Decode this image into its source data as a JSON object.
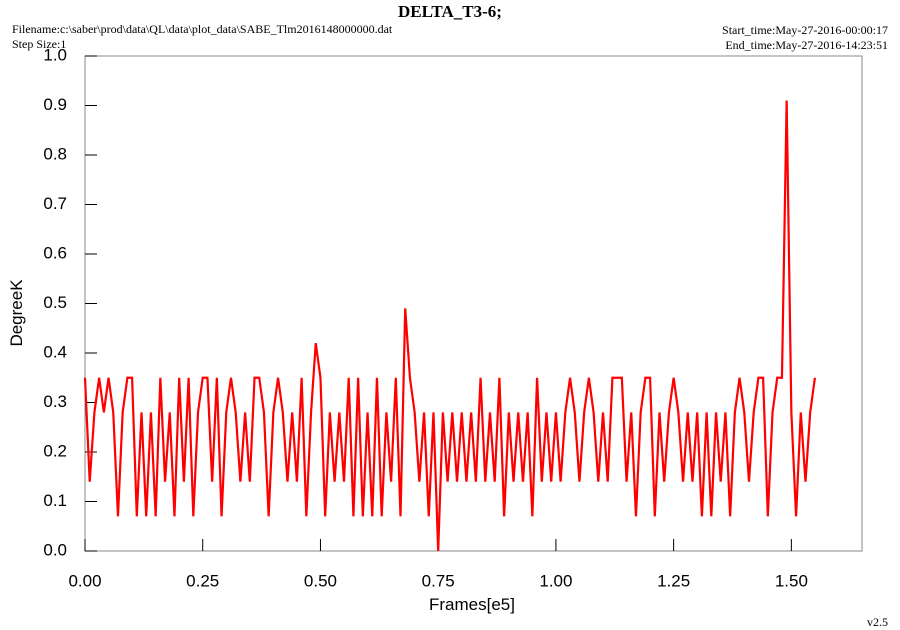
{
  "chart_data": {
    "type": "line",
    "title": "DELTA_T3-6;",
    "filename": "Filename:c:\\saber\\prod\\data\\QL\\data\\plot_data\\SABE_Tlm2016148000000.dat",
    "step_size": "Step Size:1",
    "start_time": "Start_time:May-27-2016-00:00:17",
    "end_time": "End_time:May-27-2016-14:23:51",
    "version": "v2.5",
    "xlabel": "Frames[e5]",
    "ylabel": "DegreeK",
    "xlim": [
      0,
      1.65
    ],
    "ylim": [
      0,
      1
    ],
    "xticks": [
      {
        "value": 0,
        "label": "0.00"
      },
      {
        "value": 0.25,
        "label": "0.25"
      },
      {
        "value": 0.5,
        "label": "0.50"
      },
      {
        "value": 0.75,
        "label": "0.75"
      },
      {
        "value": 1,
        "label": "1.00"
      },
      {
        "value": 1.25,
        "label": "1.25"
      },
      {
        "value": 1.5,
        "label": "1.50"
      }
    ],
    "yticks": [
      {
        "value": 0,
        "label": "0.0"
      },
      0.1,
      0.2,
      0.3,
      0.4,
      0.5,
      0.6,
      0.7,
      0.8,
      0.9,
      {
        "value": 1,
        "label": "1.0"
      }
    ],
    "x": [
      0,
      0.01,
      0.02,
      0.03,
      0.04,
      0.05,
      0.06,
      0.07,
      0.08,
      0.09,
      0.1,
      0.11,
      0.12,
      0.13,
      0.14,
      0.15,
      0.16,
      0.17,
      0.18,
      0.19,
      0.2,
      0.21,
      0.22,
      0.23,
      0.24,
      0.25,
      0.26,
      0.27,
      0.28,
      0.29,
      0.3,
      0.31,
      0.32,
      0.33,
      0.34,
      0.35,
      0.36,
      0.37,
      0.38,
      0.39,
      0.4,
      0.41,
      0.42,
      0.43,
      0.44,
      0.45,
      0.46,
      0.47,
      0.48,
      0.49,
      0.5,
      0.51,
      0.52,
      0.53,
      0.54,
      0.55,
      0.56,
      0.57,
      0.58,
      0.59,
      0.6,
      0.61,
      0.62,
      0.63,
      0.64,
      0.65,
      0.66,
      0.67,
      0.68,
      0.69,
      0.7,
      0.71,
      0.72,
      0.73,
      0.74,
      0.75,
      0.76,
      0.77,
      0.78,
      0.79,
      0.8,
      0.81,
      0.82,
      0.83,
      0.84,
      0.85,
      0.86,
      0.87,
      0.88,
      0.89,
      0.9,
      0.91,
      0.92,
      0.93,
      0.94,
      0.95,
      0.96,
      0.97,
      0.98,
      0.99,
      1,
      1.01,
      1.02,
      1.03,
      1.04,
      1.05,
      1.06,
      1.07,
      1.08,
      1.09,
      1.1,
      1.11,
      1.12,
      1.13,
      1.14,
      1.15,
      1.16,
      1.17,
      1.18,
      1.19,
      1.2,
      1.21,
      1.22,
      1.23,
      1.24,
      1.25,
      1.26,
      1.27,
      1.28,
      1.29,
      1.3,
      1.31,
      1.32,
      1.33,
      1.34,
      1.35,
      1.36,
      1.37,
      1.38,
      1.39,
      1.4,
      1.41,
      1.42,
      1.43,
      1.44,
      1.45,
      1.46,
      1.47,
      1.48,
      1.49,
      1.5,
      1.51,
      1.52,
      1.53,
      1.54,
      1.55
    ],
    "series": [
      {
        "color": "#ff0000",
        "values": [
          0.35,
          0.14,
          0.28,
          0.35,
          0.28,
          0.35,
          0.28,
          0.07,
          0.28,
          0.35,
          0.35,
          0.07,
          0.28,
          0.07,
          0.28,
          0.07,
          0.35,
          0.14,
          0.28,
          0.07,
          0.35,
          0.14,
          0.35,
          0.07,
          0.28,
          0.35,
          0.35,
          0.14,
          0.35,
          0.07,
          0.28,
          0.35,
          0.28,
          0.14,
          0.28,
          0.14,
          0.35,
          0.35,
          0.28,
          0.07,
          0.28,
          0.35,
          0.28,
          0.14,
          0.28,
          0.14,
          0.35,
          0.07,
          0.28,
          0.42,
          0.35,
          0.07,
          0.28,
          0.14,
          0.28,
          0.14,
          0.35,
          0.07,
          0.35,
          0.07,
          0.28,
          0.07,
          0.35,
          0.07,
          0.28,
          0.14,
          0.35,
          0.07,
          0.49,
          0.35,
          0.28,
          0.14,
          0.28,
          0.07,
          0.28,
          0,
          0.28,
          0.14,
          0.28,
          0.14,
          0.28,
          0.14,
          0.28,
          0.14,
          0.35,
          0.14,
          0.28,
          0.14,
          0.35,
          0.07,
          0.28,
          0.14,
          0.28,
          0.14,
          0.28,
          0.07,
          0.35,
          0.14,
          0.28,
          0.14,
          0.28,
          0.14,
          0.28,
          0.35,
          0.28,
          0.14,
          0.28,
          0.35,
          0.28,
          0.14,
          0.28,
          0.14,
          0.35,
          0.35,
          0.35,
          0.14,
          0.28,
          0.07,
          0.28,
          0.35,
          0.35,
          0.07,
          0.28,
          0.14,
          0.28,
          0.35,
          0.28,
          0.14,
          0.28,
          0.14,
          0.28,
          0.07,
          0.28,
          0.07,
          0.28,
          0.14,
          0.28,
          0.07,
          0.28,
          0.35,
          0.28,
          0.14,
          0.28,
          0.35,
          0.35,
          0.07,
          0.28,
          0.35,
          0.35,
          0.91,
          0.28,
          0.07,
          0.28,
          0.14,
          0.28,
          0.35
        ]
      }
    ]
  }
}
